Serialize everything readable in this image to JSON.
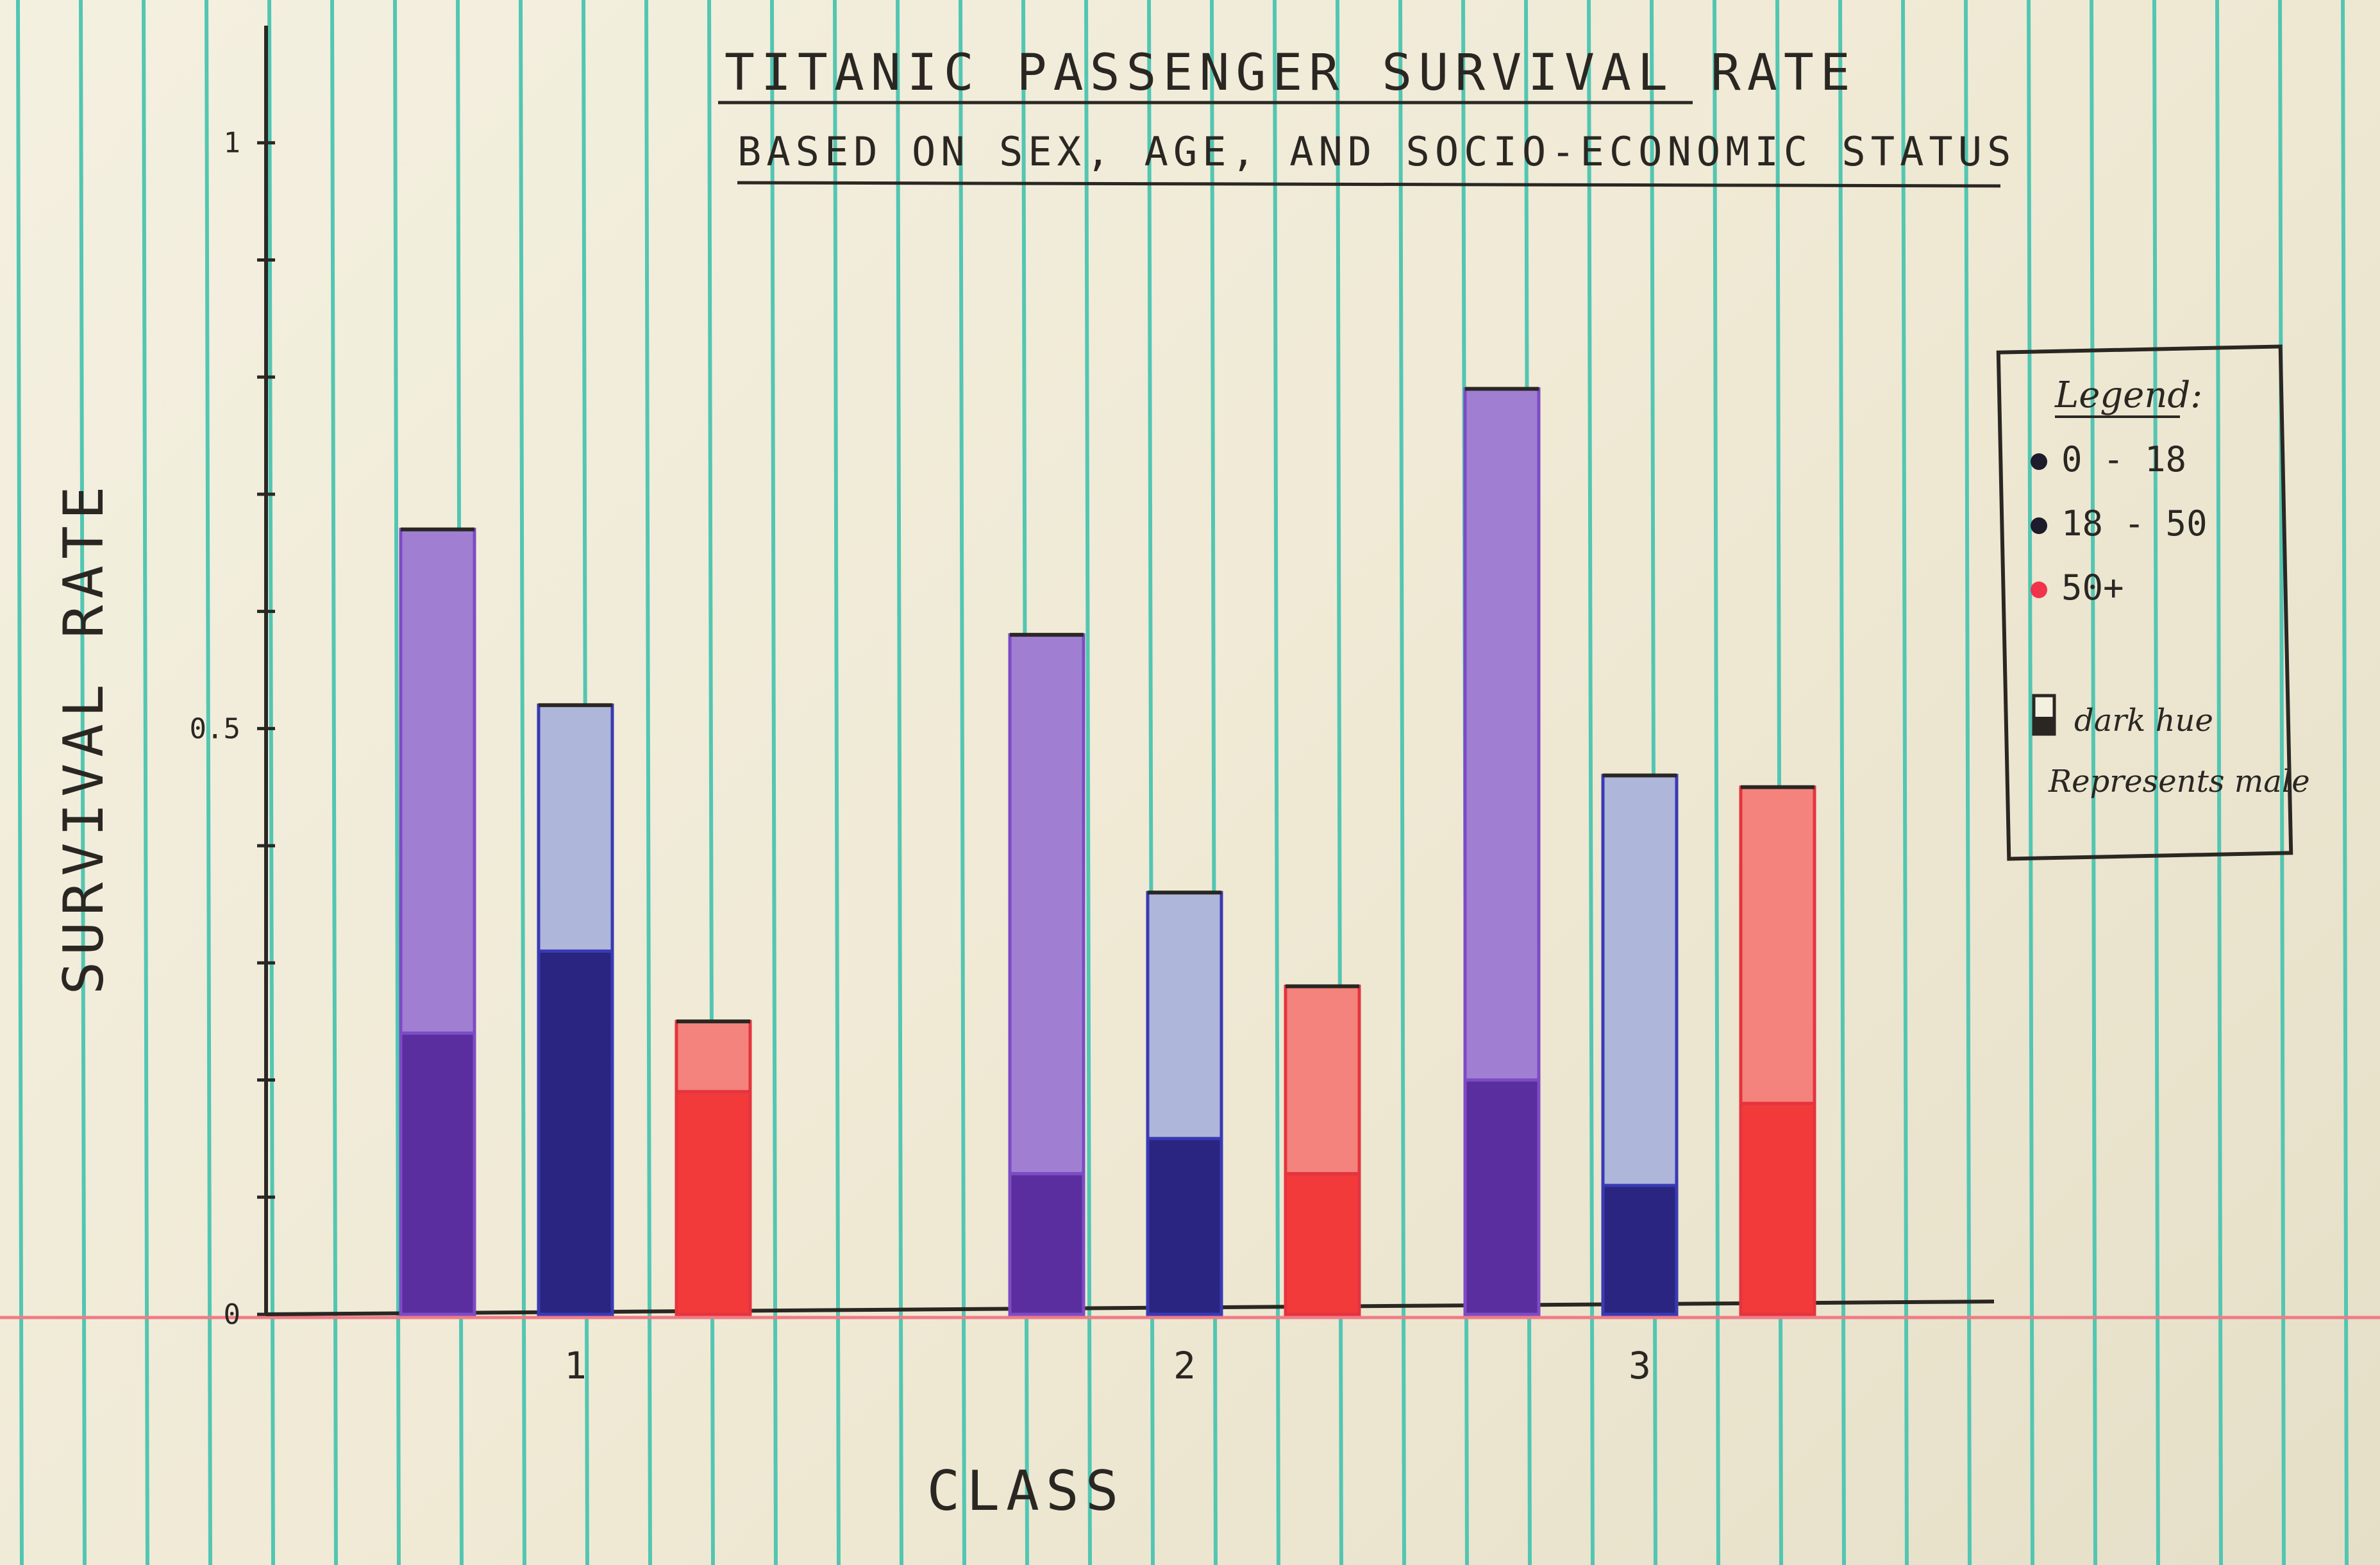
{
  "chart_data": {
    "type": "bar",
    "title": "TITANIC PASSENGER SURVIVAL RATE",
    "subtitle": "BASED ON SEX, AGE, AND SOCIO-ECONOMIC STATUS",
    "xlabel": "CLASS",
    "ylabel": "SURVIVAL RATE",
    "categories": [
      "1",
      "2",
      "3"
    ],
    "ylim": [
      0,
      1.1
    ],
    "yticks": [
      0,
      0.5,
      1
    ],
    "ytick_labels": [
      "0",
      "0.5",
      "1"
    ],
    "grid": false,
    "legend_position": "right",
    "series": [
      {
        "name": "0 - 18",
        "total": [
          0.67,
          0.58,
          0.79
        ],
        "male": [
          0.24,
          0.12,
          0.2
        ]
      },
      {
        "name": "18 - 50",
        "total": [
          0.52,
          0.36,
          0.46
        ],
        "male": [
          0.31,
          0.15,
          0.11
        ]
      },
      {
        "name": "50+",
        "total": [
          0.25,
          0.28,
          0.45
        ],
        "male": [
          0.19,
          0.12,
          0.18
        ]
      }
    ],
    "legend": {
      "title": "Legend:",
      "entries": [
        "0 - 18",
        "18 - 50",
        "50+"
      ],
      "note_line1": "dark hue",
      "note_line2": "Represents male"
    }
  },
  "colors": {
    "series_light": [
      "#a07fd2",
      "#aeb6da",
      "#f3837c"
    ],
    "series_dark": [
      "#5a2e9e",
      "#2a2580",
      "#f23a3a"
    ],
    "series_outline": [
      "#7d4bc4",
      "#3a3ab4",
      "#e4343f"
    ],
    "legend_dots": [
      "#1e1b2a",
      "#1e1b2a",
      "#f0344a"
    ],
    "ruled_line": "#52c6b2",
    "margin_line": "#f07b86",
    "ink": "#2a2723"
  }
}
